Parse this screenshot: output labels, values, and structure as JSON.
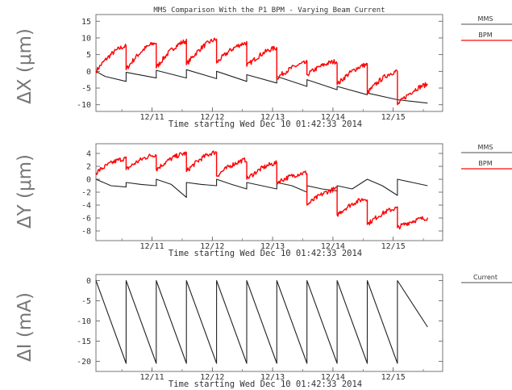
{
  "chart_data": [
    {
      "type": "line",
      "title": "MMS Comparison With the P1 BPM - Varying Beam Current",
      "ylabel": "ΔX  (μm)",
      "xlabel": "Time starting Wed Dec 10 01:42:33 2014",
      "xlim": [
        0,
        5.75
      ],
      "x_unit": "days",
      "ylim": [
        -12,
        17
      ],
      "yticks": [
        -10,
        -5,
        0,
        5,
        10,
        15
      ],
      "xticks": [
        {
          "x": 0.93,
          "label": "12/11"
        },
        {
          "x": 1.93,
          "label": "12/12"
        },
        {
          "x": 2.93,
          "label": "12/13"
        },
        {
          "x": 3.93,
          "label": "12/14"
        },
        {
          "x": 4.93,
          "label": "12/15"
        }
      ],
      "legend_position": "right",
      "series": [
        {
          "name": "MMS",
          "color": "#222222",
          "x": [
            0.0,
            0.15,
            0.5,
            0.5,
            1.0,
            1.0,
            1.5,
            1.5,
            2.0,
            2.0,
            2.5,
            2.5,
            3.0,
            3.0,
            3.5,
            3.5,
            4.0,
            4.0,
            4.5,
            4.5,
            5.0,
            5.0,
            5.5
          ],
          "y": [
            0.0,
            -1.5,
            -3.0,
            -0.3,
            -2.0,
            0.3,
            -2.0,
            0.5,
            -2.2,
            0.0,
            -3.0,
            -1.0,
            -3.5,
            -1.5,
            -4.5,
            -2.5,
            -5.5,
            -4.5,
            -7.0,
            -6.5,
            -8.5,
            -8.5,
            -9.5
          ]
        },
        {
          "name": "BPM",
          "color": "#ff0000",
          "x": [
            0.0,
            0.5,
            0.5,
            1.0,
            1.0,
            1.5,
            1.5,
            2.0,
            2.0,
            2.5,
            2.5,
            3.0,
            3.0,
            3.5,
            3.5,
            4.0,
            4.0,
            4.5,
            4.5,
            5.0,
            5.0,
            5.5
          ],
          "y": [
            0.0,
            7.5,
            0.5,
            8.5,
            1.0,
            9.0,
            2.0,
            9.5,
            2.5,
            8.5,
            1.5,
            7.0,
            -2.0,
            2.5,
            -1.0,
            3.0,
            -4.0,
            2.0,
            -6.5,
            0.0,
            -10.0,
            -4.0
          ]
        }
      ]
    },
    {
      "type": "line",
      "ylabel": "ΔY  (μm)",
      "xlabel": "Time starting Wed Dec 10 01:42:33 2014",
      "xlim": [
        0,
        5.75
      ],
      "x_unit": "days",
      "ylim": [
        -9.5,
        5.5
      ],
      "yticks": [
        -8,
        -6,
        -4,
        -2,
        0,
        2,
        4
      ],
      "xticks": [
        {
          "x": 0.93,
          "label": "12/11"
        },
        {
          "x": 1.93,
          "label": "12/12"
        },
        {
          "x": 2.93,
          "label": "12/13"
        },
        {
          "x": 3.93,
          "label": "12/14"
        },
        {
          "x": 4.93,
          "label": "12/15"
        }
      ],
      "legend_position": "right",
      "series": [
        {
          "name": "MMS",
          "color": "#222222",
          "x": [
            0.0,
            0.25,
            0.5,
            0.5,
            0.75,
            1.0,
            1.0,
            1.25,
            1.5,
            1.5,
            1.75,
            2.0,
            2.0,
            2.25,
            2.5,
            2.5,
            2.75,
            3.0,
            3.0,
            3.25,
            3.5,
            3.5,
            3.75,
            4.0,
            4.0,
            4.25,
            4.5,
            4.5,
            4.75,
            5.0,
            5.0,
            5.25,
            5.5
          ],
          "y": [
            0.0,
            -1.0,
            -1.2,
            -0.5,
            -0.8,
            -1.0,
            0.0,
            -0.8,
            -2.8,
            -0.5,
            -0.8,
            -1.0,
            0.0,
            -0.8,
            -1.5,
            -0.5,
            -1.0,
            -1.5,
            -0.5,
            -1.0,
            -2.0,
            -1.0,
            -1.5,
            -1.8,
            -1.0,
            -1.5,
            0.0,
            0.0,
            -1.0,
            -2.5,
            0.0,
            -0.5,
            -1.0
          ]
        },
        {
          "name": "BPM",
          "color": "#ff0000",
          "x": [
            0.0,
            0.5,
            0.5,
            1.0,
            1.0,
            1.5,
            1.5,
            2.0,
            2.0,
            2.5,
            2.5,
            3.0,
            3.0,
            3.5,
            3.5,
            4.0,
            4.0,
            4.5,
            4.5,
            5.0,
            5.0,
            5.5
          ],
          "y": [
            1.0,
            3.2,
            1.5,
            3.8,
            1.5,
            4.0,
            1.2,
            4.2,
            0.5,
            3.0,
            0.0,
            2.5,
            -0.5,
            1.0,
            -4.0,
            -1.5,
            -5.5,
            -3.0,
            -7.0,
            -4.5,
            -7.5,
            -6.0
          ]
        }
      ]
    },
    {
      "type": "line",
      "ylabel": "ΔI  (mA)",
      "xlabel": "Time starting Wed Dec 10 01:42:33 2014",
      "xlim": [
        0,
        5.75
      ],
      "x_unit": "days",
      "ylim": [
        -22.5,
        1.5
      ],
      "yticks": [
        -20,
        -15,
        -10,
        -5,
        0
      ],
      "xticks": [
        {
          "x": 0.93,
          "label": "12/11"
        },
        {
          "x": 1.93,
          "label": "12/12"
        },
        {
          "x": 2.93,
          "label": "12/13"
        },
        {
          "x": 3.93,
          "label": "12/14"
        },
        {
          "x": 4.93,
          "label": "12/15"
        }
      ],
      "legend_position": "right",
      "series": [
        {
          "name": "Current",
          "color": "#222222",
          "x": [
            0.0,
            0.5,
            0.5,
            1.0,
            1.0,
            1.5,
            1.5,
            2.0,
            2.0,
            2.5,
            2.5,
            3.0,
            3.0,
            3.5,
            3.5,
            4.0,
            4.0,
            4.5,
            4.5,
            5.0,
            5.0,
            5.5
          ],
          "y": [
            0,
            -20.5,
            0,
            -20.5,
            0,
            -20.5,
            0,
            -20.5,
            0,
            -20.5,
            0,
            -20.5,
            0,
            -20.5,
            0,
            -20.5,
            0,
            -20.5,
            0,
            -20.5,
            0,
            -11.5
          ]
        }
      ]
    }
  ]
}
